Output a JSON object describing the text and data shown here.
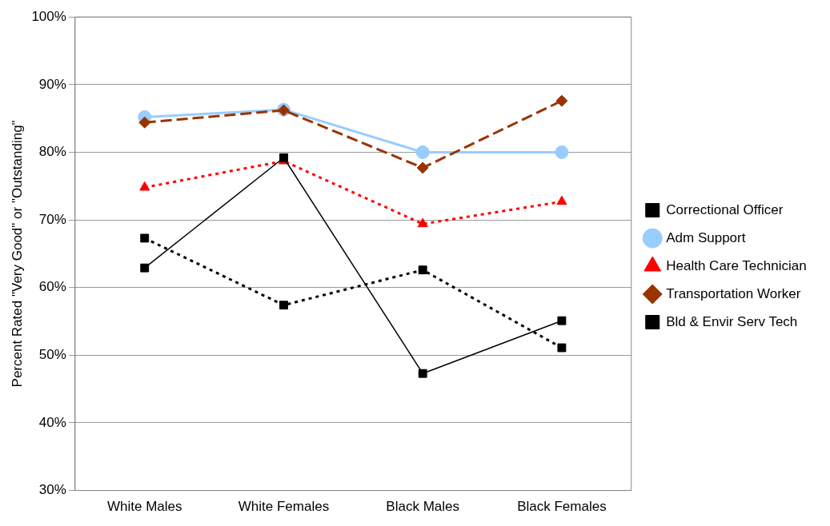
{
  "chart_data": {
    "type": "line",
    "ylabel": "Percent Rated \"Very Good\" or \"Outstanding\"",
    "categories": [
      "White Males",
      "White Females",
      "Black Males",
      "Black Females"
    ],
    "series": [
      {
        "name": "Correctional Officer",
        "color": "#000000",
        "marker": "square",
        "line_style": "dotted",
        "values": [
          67.3,
          57.4,
          62.6,
          51.1
        ]
      },
      {
        "name": "Adm Support",
        "color": "#99ccff",
        "marker": "circle",
        "line_style": "solid",
        "values": [
          85.2,
          86.3,
          80.0,
          80.0
        ]
      },
      {
        "name": "Health Care Technician",
        "color": "#ff0000",
        "marker": "triangle",
        "line_style": "dotted",
        "values": [
          74.8,
          78.7,
          69.4,
          72.7
        ]
      },
      {
        "name": "Transportation Worker",
        "color": "#993300",
        "marker": "diamond",
        "line_style": "dashed",
        "values": [
          84.4,
          86.2,
          77.7,
          87.6
        ]
      },
      {
        "name": "Bld & Envir Serv Tech",
        "color": "#000000",
        "marker": "square",
        "line_style": "solid",
        "values": [
          62.9,
          79.2,
          47.3,
          55.1
        ]
      }
    ],
    "ylim": [
      30,
      100
    ],
    "yticks": [
      {
        "value": 30,
        "label": "30%"
      },
      {
        "value": 40,
        "label": "40%"
      },
      {
        "value": 50,
        "label": "50%"
      },
      {
        "value": 60,
        "label": "60%"
      },
      {
        "value": 70,
        "label": "70%"
      },
      {
        "value": 80,
        "label": "80%"
      },
      {
        "value": 90,
        "label": "90%"
      },
      {
        "value": 100,
        "label": "100%"
      }
    ],
    "grid": "y",
    "legend": "right"
  }
}
